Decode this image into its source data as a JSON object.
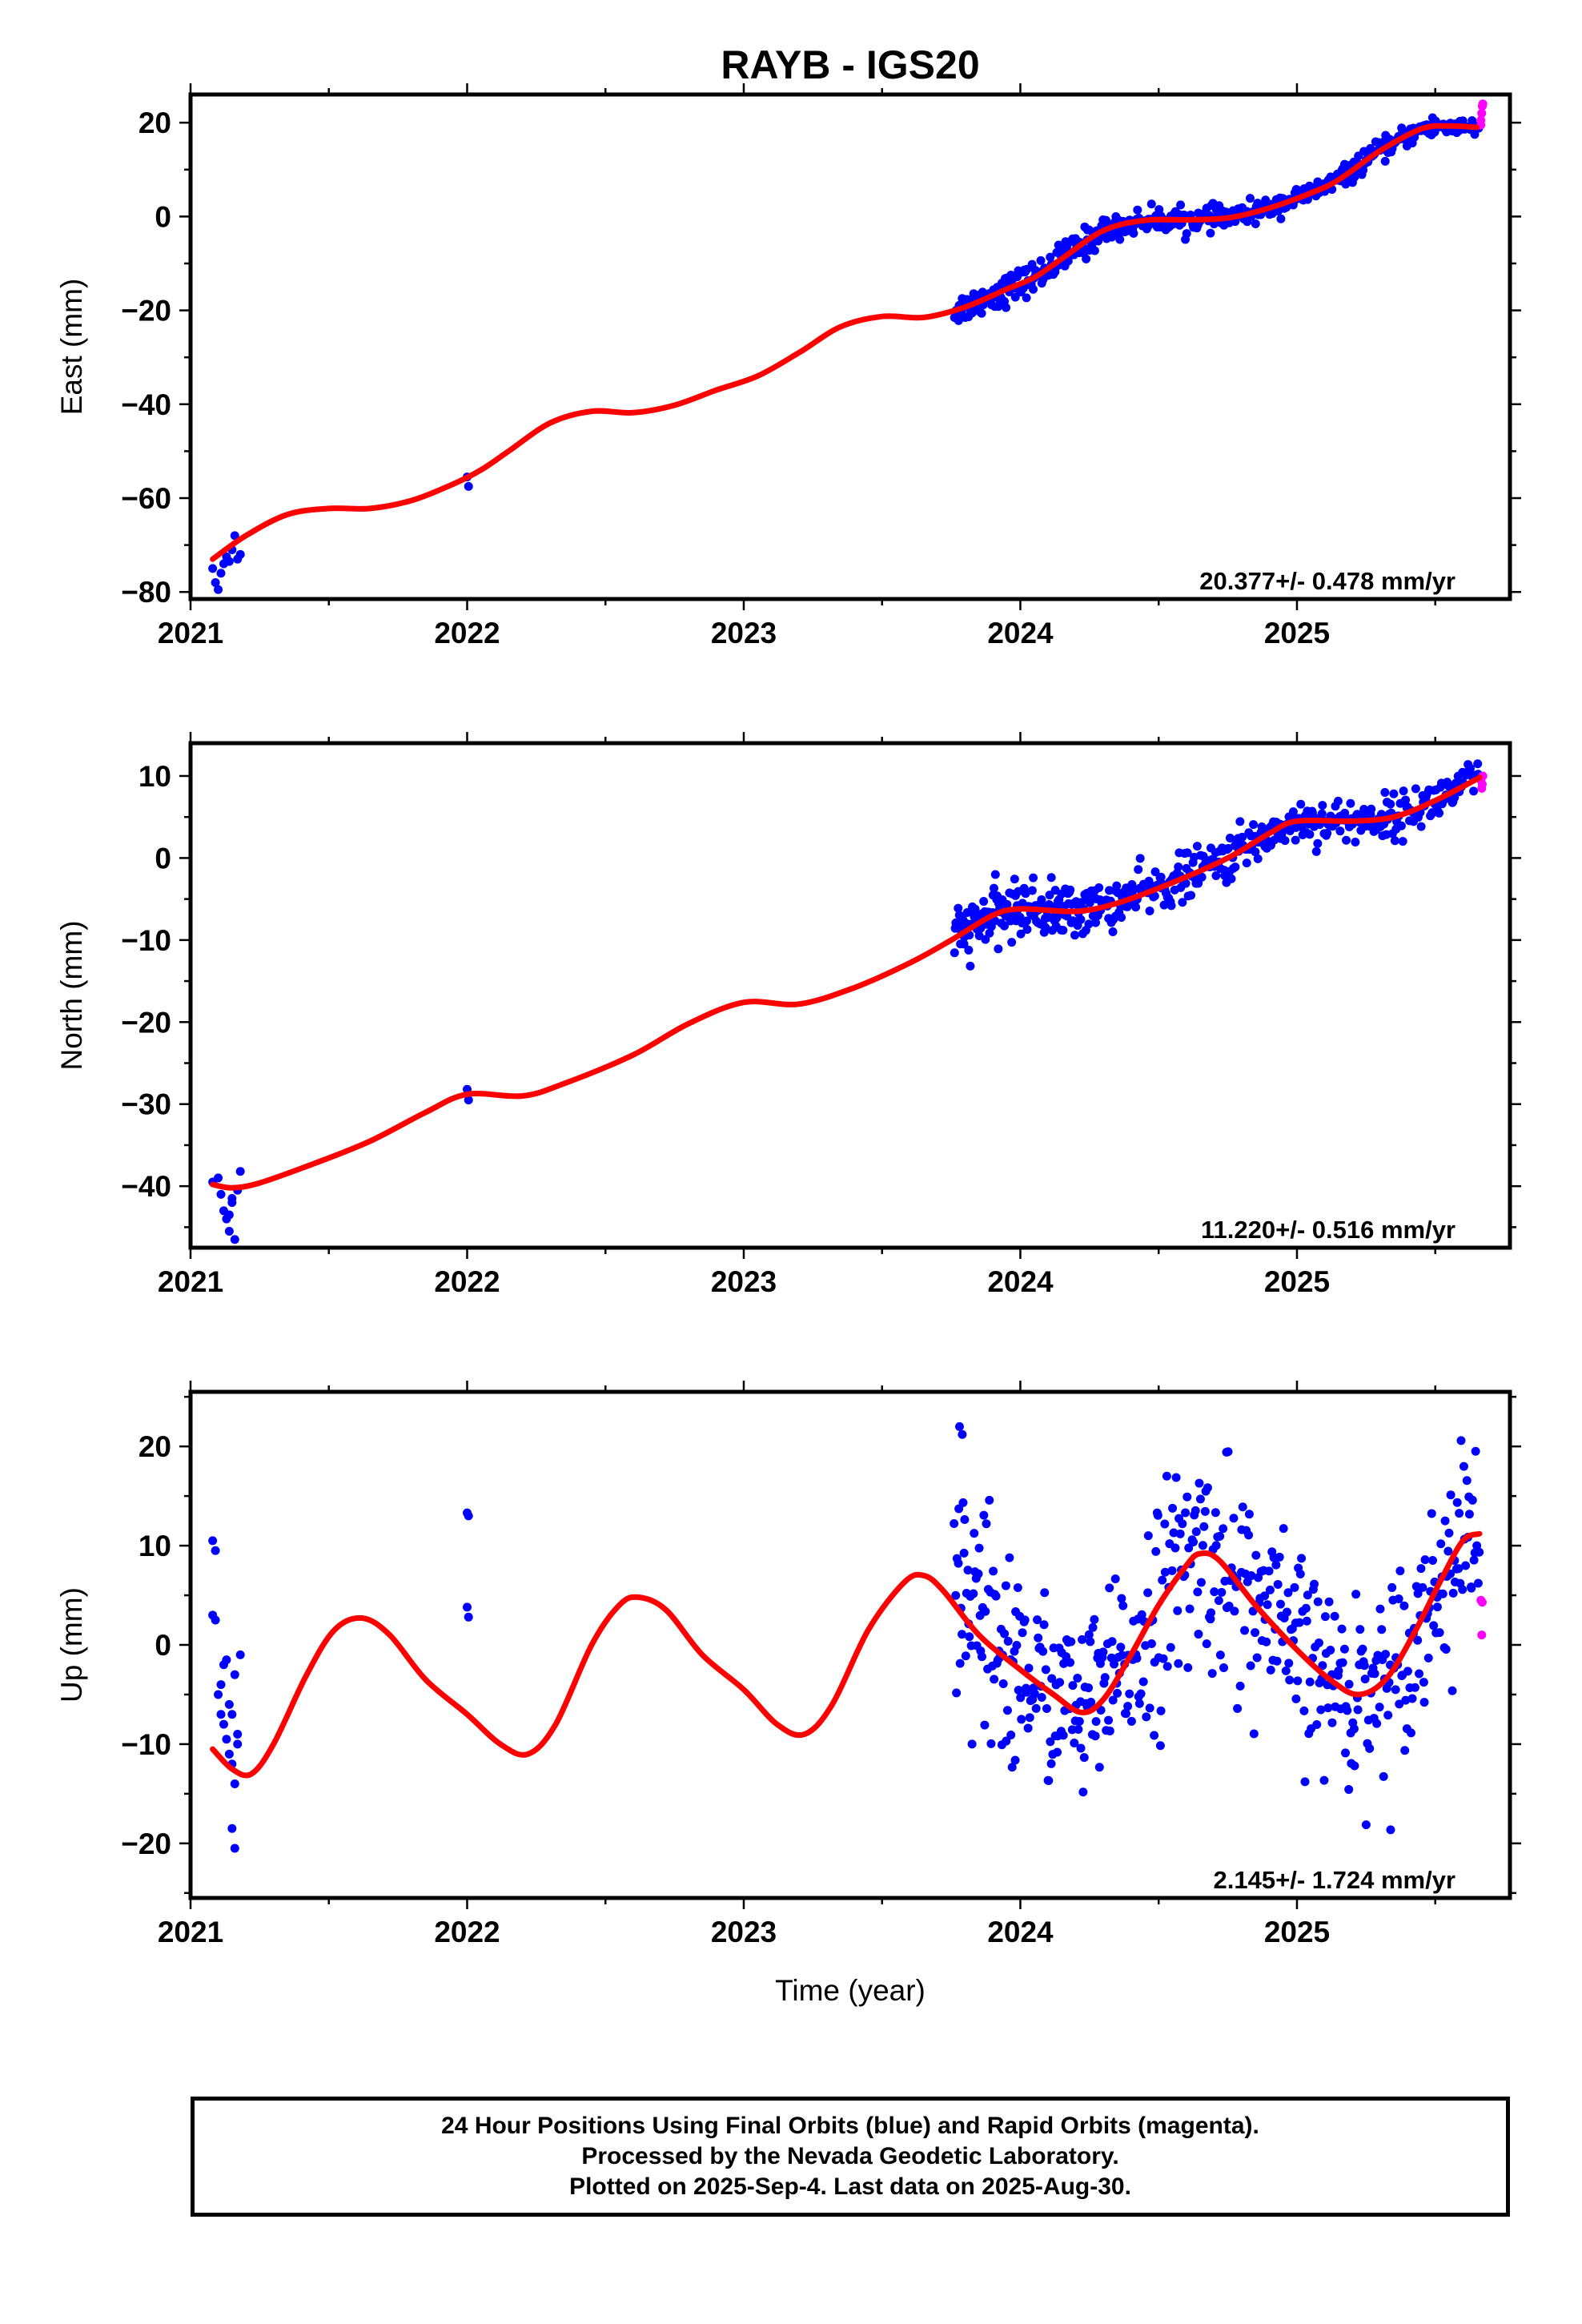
{
  "title": "RAYB - IGS20",
  "colors": {
    "final": "#0000ff",
    "rapid": "#ff00ff",
    "model": "#ff0000",
    "axis": "#000000"
  },
  "chart_data": [
    {
      "type": "scatter",
      "name": "east",
      "ylabel": "East (mm)",
      "xlim": [
        2021.0,
        2025.77
      ],
      "ylim": [
        -81.5,
        26
      ],
      "yticks": [
        -80,
        -60,
        -40,
        -20,
        0,
        20
      ],
      "xticks": [
        2021,
        2022,
        2023,
        2024,
        2025
      ],
      "rate": "20.377+/- 0.478 mm/yr",
      "model": [
        [
          2021.08,
          -73
        ],
        [
          2021.2,
          -68
        ],
        [
          2021.35,
          -63.5
        ],
        [
          2021.5,
          -62.2
        ],
        [
          2021.65,
          -62.2
        ],
        [
          2021.8,
          -60.5
        ],
        [
          2021.95,
          -57
        ],
        [
          2022.05,
          -54
        ],
        [
          2022.15,
          -50
        ],
        [
          2022.3,
          -44
        ],
        [
          2022.45,
          -41.5
        ],
        [
          2022.6,
          -41.8
        ],
        [
          2022.75,
          -40.2
        ],
        [
          2022.9,
          -37
        ],
        [
          2023.05,
          -34
        ],
        [
          2023.2,
          -29
        ],
        [
          2023.35,
          -23.5
        ],
        [
          2023.5,
          -21.3
        ],
        [
          2023.65,
          -21.5
        ],
        [
          2023.8,
          -19.3
        ],
        [
          2023.95,
          -15.5
        ],
        [
          2024.05,
          -13
        ],
        [
          2024.15,
          -9
        ],
        [
          2024.3,
          -3
        ],
        [
          2024.45,
          -0.8
        ],
        [
          2024.6,
          -0.7
        ],
        [
          2024.75,
          -0.3
        ],
        [
          2024.9,
          1.8
        ],
        [
          2025.05,
          5
        ],
        [
          2025.15,
          7.8
        ],
        [
          2025.3,
          14
        ],
        [
          2025.45,
          18.7
        ],
        [
          2025.55,
          19.3
        ],
        [
          2025.65,
          19
        ]
      ],
      "final": [
        [
          2021.08,
          -75
        ],
        [
          2021.09,
          -78
        ],
        [
          2021.1,
          -79.5
        ],
        [
          2021.11,
          -76
        ],
        [
          2021.12,
          -74
        ],
        [
          2021.13,
          -72.5
        ],
        [
          2021.14,
          -73.5
        ],
        [
          2021.15,
          -71
        ],
        [
          2021.16,
          -68
        ],
        [
          2021.17,
          -73
        ],
        [
          2021.18,
          -72
        ],
        [
          2022.0,
          -55.5
        ],
        [
          2022.005,
          -57.5
        ]
      ],
      "dense": [
        {
          "x0": 2023.76,
          "x1": 2024.3,
          "n": 150,
          "noise": 1.6
        },
        {
          "x0": 2024.3,
          "x1": 2024.8,
          "n": 140,
          "noise": 1.2
        },
        {
          "x0": 2024.8,
          "x1": 2025.6,
          "n": 200,
          "noise": 1.1
        },
        {
          "x0": 2025.6,
          "x1": 2025.66,
          "n": 12,
          "noise": 1.0
        }
      ],
      "rapid": [
        [
          2025.665,
          20.5
        ],
        [
          2025.668,
          22
        ],
        [
          2025.67,
          23.5
        ],
        [
          2025.672,
          24
        ],
        [
          2025.665,
          19.5
        ]
      ]
    },
    {
      "type": "scatter",
      "name": "north",
      "ylabel": "North (mm)",
      "xlim": [
        2021.0,
        2025.77
      ],
      "ylim": [
        -47.5,
        14
      ],
      "yticks": [
        -40,
        -30,
        -20,
        -10,
        0,
        10
      ],
      "xticks": [
        2021,
        2022,
        2023,
        2024,
        2025
      ],
      "rate": "11.220+/- 0.516 mm/yr",
      "model": [
        [
          2021.08,
          -39.8
        ],
        [
          2021.15,
          -40.2
        ],
        [
          2021.25,
          -39.6
        ],
        [
          2021.45,
          -37.2
        ],
        [
          2021.65,
          -34.5
        ],
        [
          2021.85,
          -31
        ],
        [
          2022.0,
          -28.8
        ],
        [
          2022.2,
          -29
        ],
        [
          2022.35,
          -27.5
        ],
        [
          2022.6,
          -24
        ],
        [
          2022.8,
          -20.2
        ],
        [
          2023.0,
          -17.6
        ],
        [
          2023.2,
          -17.8
        ],
        [
          2023.4,
          -15.8
        ],
        [
          2023.6,
          -12.8
        ],
        [
          2023.75,
          -10
        ],
        [
          2023.9,
          -7
        ],
        [
          2024.0,
          -6.2
        ],
        [
          2024.2,
          -6.5
        ],
        [
          2024.35,
          -5.5
        ],
        [
          2024.55,
          -3
        ],
        [
          2024.75,
          0
        ],
        [
          2024.9,
          3
        ],
        [
          2025.0,
          4.5
        ],
        [
          2025.2,
          4.5
        ],
        [
          2025.35,
          5
        ],
        [
          2025.5,
          7
        ],
        [
          2025.66,
          9.8
        ]
      ],
      "final": [
        [
          2021.08,
          -39.5
        ],
        [
          2021.1,
          -39
        ],
        [
          2021.11,
          -41
        ],
        [
          2021.12,
          -43
        ],
        [
          2021.13,
          -44
        ],
        [
          2021.14,
          -45.5
        ],
        [
          2021.15,
          -42
        ],
        [
          2021.16,
          -46.5
        ],
        [
          2021.17,
          -40.5
        ],
        [
          2021.18,
          -38.2
        ],
        [
          2021.15,
          -41.5
        ],
        [
          2021.14,
          -43.5
        ],
        [
          2022.0,
          -28.2
        ],
        [
          2022.005,
          -29.5
        ]
      ],
      "dense": [
        {
          "x0": 2023.76,
          "x1": 2024.22,
          "n": 160,
          "noise": 1.6
        },
        {
          "x0": 2024.22,
          "x1": 2024.8,
          "n": 150,
          "noise": 1.4
        },
        {
          "x0": 2024.8,
          "x1": 2025.6,
          "n": 200,
          "noise": 1.3
        },
        {
          "x0": 2025.6,
          "x1": 2025.66,
          "n": 12,
          "noise": 1.3
        }
      ],
      "rapid": [
        [
          2025.665,
          9.5
        ],
        [
          2025.668,
          8.5
        ],
        [
          2025.67,
          9
        ],
        [
          2025.672,
          10
        ]
      ]
    },
    {
      "type": "scatter",
      "name": "up",
      "ylabel": "Up (mm)",
      "xlabel": "Time (year)",
      "xlim": [
        2021.0,
        2025.77
      ],
      "ylim": [
        -25.5,
        25.5
      ],
      "yticks": [
        -20,
        -10,
        0,
        10,
        20
      ],
      "xticks": [
        2021,
        2022,
        2023,
        2024,
        2025
      ],
      "rate": "2.145+/- 1.724 mm/yr",
      "model": [
        [
          2021.08,
          -10.5
        ],
        [
          2021.15,
          -12.5
        ],
        [
          2021.22,
          -13
        ],
        [
          2021.3,
          -10
        ],
        [
          2021.42,
          -3
        ],
        [
          2021.52,
          1.5
        ],
        [
          2021.62,
          2.7
        ],
        [
          2021.72,
          1
        ],
        [
          2021.85,
          -3.5
        ],
        [
          2022.0,
          -7
        ],
        [
          2022.12,
          -10
        ],
        [
          2022.22,
          -11
        ],
        [
          2022.32,
          -8
        ],
        [
          2022.45,
          0
        ],
        [
          2022.55,
          4
        ],
        [
          2022.62,
          4.8
        ],
        [
          2022.72,
          3.5
        ],
        [
          2022.85,
          -1
        ],
        [
          2023.0,
          -4.5
        ],
        [
          2023.12,
          -8
        ],
        [
          2023.22,
          -9
        ],
        [
          2023.32,
          -6
        ],
        [
          2023.45,
          1.5
        ],
        [
          2023.58,
          6.3
        ],
        [
          2023.65,
          7
        ],
        [
          2023.72,
          5.5
        ],
        [
          2023.85,
          1
        ],
        [
          2024.0,
          -2.5
        ],
        [
          2024.12,
          -5
        ],
        [
          2024.22,
          -6.8
        ],
        [
          2024.3,
          -5.5
        ],
        [
          2024.4,
          -1
        ],
        [
          2024.5,
          4
        ],
        [
          2024.6,
          8
        ],
        [
          2024.65,
          9.2
        ],
        [
          2024.72,
          8.5
        ],
        [
          2024.85,
          4
        ],
        [
          2025.0,
          -0.5
        ],
        [
          2025.12,
          -3.5
        ],
        [
          2025.22,
          -5
        ],
        [
          2025.32,
          -3.5
        ],
        [
          2025.42,
          1
        ],
        [
          2025.52,
          6.5
        ],
        [
          2025.6,
          10.5
        ],
        [
          2025.66,
          11.2
        ]
      ],
      "final": [
        [
          2021.08,
          10.5
        ],
        [
          2021.09,
          9.5
        ],
        [
          2021.08,
          3
        ],
        [
          2021.09,
          2.5
        ],
        [
          2021.1,
          -5
        ],
        [
          2021.11,
          -4
        ],
        [
          2021.12,
          -2
        ],
        [
          2021.13,
          -1.5
        ],
        [
          2021.14,
          -6
        ],
        [
          2021.15,
          -7
        ],
        [
          2021.16,
          -3
        ],
        [
          2021.17,
          -9
        ],
        [
          2021.18,
          -1
        ],
        [
          2021.12,
          -8
        ],
        [
          2021.14,
          -11
        ],
        [
          2021.15,
          -12
        ],
        [
          2021.16,
          -14
        ],
        [
          2021.15,
          -18.5
        ],
        [
          2021.16,
          -20.5
        ],
        [
          2021.17,
          -10
        ],
        [
          2021.11,
          -7
        ],
        [
          2021.13,
          -9.5
        ],
        [
          2022.0,
          13.3
        ],
        [
          2022.005,
          13
        ],
        [
          2022.0,
          3.8
        ],
        [
          2022.005,
          2.8
        ],
        [
          2023.78,
          22
        ],
        [
          2023.79,
          21.2
        ]
      ],
      "dense": [
        {
          "x0": 2023.76,
          "x1": 2024.0,
          "n": 70,
          "noise": 6.5
        },
        {
          "x0": 2024.0,
          "x1": 2024.4,
          "n": 110,
          "noise": 4.5
        },
        {
          "x0": 2024.4,
          "x1": 2024.9,
          "n": 130,
          "noise": 5.5
        },
        {
          "x0": 2024.9,
          "x1": 2025.4,
          "n": 130,
          "noise": 4.8
        },
        {
          "x0": 2025.4,
          "x1": 2025.66,
          "n": 70,
          "noise": 4.5
        }
      ],
      "rapid": [
        [
          2025.665,
          4.5
        ],
        [
          2025.67,
          4.3
        ],
        [
          2025.668,
          1
        ]
      ]
    }
  ],
  "footer": {
    "line1": "24 Hour Positions Using Final Orbits (blue) and Rapid Orbits (magenta).",
    "line2": "Processed by the Nevada Geodetic Laboratory.",
    "line3": "Plotted on 2025-Sep-4. Last data on 2025-Aug-30."
  }
}
